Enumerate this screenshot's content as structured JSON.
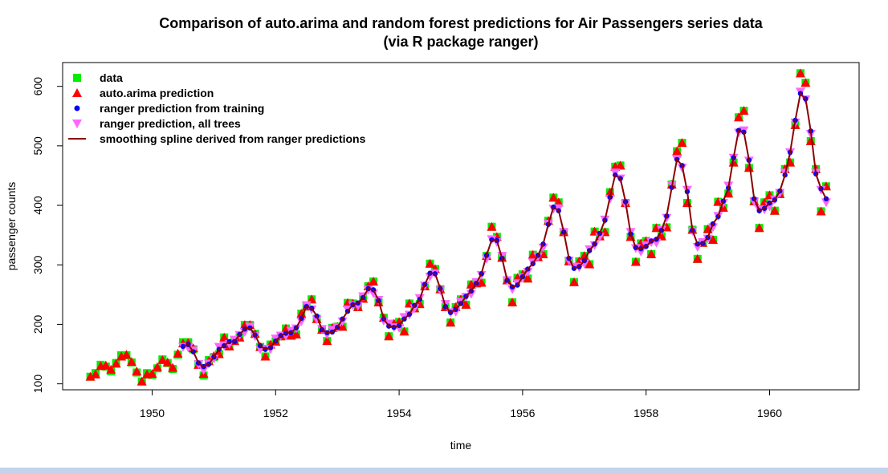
{
  "chart_data": {
    "type": "scatter",
    "title": "Comparison of auto.arima and random forest predictions for Air Passengers series data",
    "subtitle": "(via R package ranger)",
    "xlabel": "time",
    "ylabel": "passenger counts",
    "xlim": [
      1948.55,
      1961.45
    ],
    "ylim": [
      90,
      640
    ],
    "xticks": [
      1950,
      1952,
      1954,
      1956,
      1958,
      1960
    ],
    "yticks": [
      100,
      200,
      300,
      400,
      500,
      600
    ],
    "xtick_labels": [
      "1950",
      "1952",
      "1954",
      "1956",
      "1958",
      "1960"
    ],
    "ytick_labels": [
      "100",
      "200",
      "300",
      "400",
      "500",
      "600"
    ],
    "grid": false,
    "legend_position": "top-left",
    "x_start": 1949,
    "x_step": 0.0833333,
    "series": [
      {
        "name": "data",
        "marker": "square",
        "color": "#00ee00",
        "values": [
          112,
          118,
          132,
          129,
          121,
          135,
          148,
          148,
          136,
          119,
          104,
          118,
          115,
          126,
          141,
          135,
          125,
          149,
          170,
          170,
          158,
          133,
          114,
          140,
          145,
          150,
          178,
          163,
          172,
          178,
          199,
          199,
          184,
          162,
          146,
          166,
          171,
          180,
          193,
          181,
          183,
          218,
          230,
          242,
          209,
          191,
          172,
          194,
          196,
          196,
          236,
          235,
          229,
          243,
          264,
          272,
          237,
          211,
          180,
          201,
          204,
          188,
          235,
          227,
          234,
          264,
          302,
          293,
          259,
          229,
          203,
          229,
          242,
          233,
          267,
          269,
          270,
          315,
          364,
          347,
          312,
          274,
          237,
          278,
          284,
          277,
          317,
          313,
          318,
          374,
          413,
          405,
          355,
          306,
          271,
          306,
          315,
          301,
          356,
          348,
          355,
          422,
          465,
          467,
          404,
          347,
          305,
          336,
          340,
          318,
          362,
          348,
          363,
          435,
          491,
          505,
          404,
          359,
          310,
          337,
          360,
          342,
          406,
          396,
          420,
          472,
          548,
          559,
          463,
          407,
          362,
          405,
          417,
          391,
          419,
          461,
          472,
          535,
          622,
          606,
          508,
          461,
          390,
          432
        ]
      },
      {
        "name": "auto.arima prediction",
        "marker": "triangle-up",
        "color": "#ff0000",
        "values": [
          112,
          116,
          130,
          131,
          124,
          134,
          146,
          149,
          137,
          121,
          104,
          116,
          117,
          128,
          140,
          136,
          127,
          151,
          168,
          169,
          160,
          132,
          117,
          138,
          147,
          150,
          178,
          163,
          172,
          178,
          199,
          199,
          184,
          162,
          146,
          166,
          171,
          180,
          193,
          181,
          183,
          218,
          230,
          242,
          209,
          191,
          172,
          194,
          196,
          196,
          236,
          235,
          229,
          243,
          264,
          272,
          237,
          211,
          180,
          201,
          204,
          188,
          235,
          227,
          234,
          264,
          302,
          293,
          259,
          229,
          203,
          229,
          242,
          233,
          267,
          269,
          270,
          315,
          364,
          347,
          312,
          274,
          237,
          278,
          284,
          277,
          317,
          313,
          318,
          374,
          413,
          405,
          355,
          306,
          271,
          306,
          315,
          301,
          356,
          348,
          355,
          422,
          465,
          467,
          404,
          347,
          305,
          336,
          340,
          318,
          362,
          348,
          363,
          435,
          491,
          505,
          404,
          359,
          310,
          337,
          360,
          342,
          406,
          396,
          420,
          472,
          548,
          559,
          463,
          407,
          362,
          405,
          417,
          391,
          419,
          461,
          472,
          535,
          622,
          606,
          508,
          461,
          390,
          432
        ]
      },
      {
        "name": "ranger prediction from training",
        "marker": "circle",
        "color": "#0000ff",
        "values": []
      },
      {
        "name": "ranger prediction, all trees",
        "marker": "triangle-down",
        "color": "#ff66ff",
        "values": []
      },
      {
        "name": "smoothing spline derived from ranger predictions",
        "marker": "line",
        "color": "#8b0000",
        "values": []
      }
    ]
  }
}
